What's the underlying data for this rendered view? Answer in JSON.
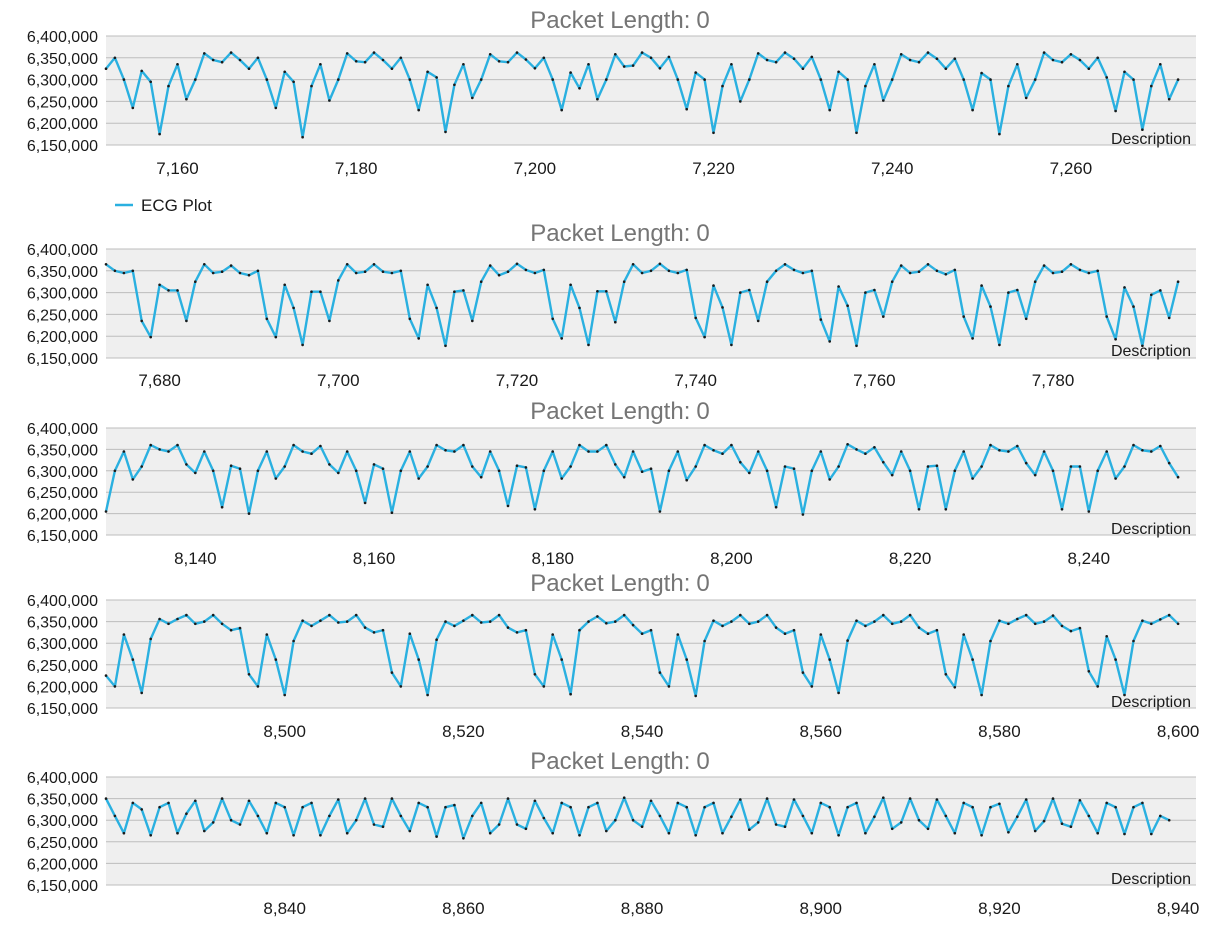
{
  "chart_data": [
    {
      "type": "line",
      "title_label": "Packet Length:",
      "title_value": "0",
      "description": "Description",
      "legend": {
        "label": "ECG Plot",
        "placement": "bottom-left"
      },
      "color": "#2ab0e0",
      "xlim": [
        7152,
        7274
      ],
      "ylim": [
        6150000,
        6400000
      ],
      "x_ticks": [
        7160,
        7180,
        7200,
        7220,
        7240,
        7260
      ],
      "y_ticks": [
        6150000,
        6200000,
        6250000,
        6300000,
        6350000,
        6400000
      ],
      "x_start": 7152,
      "x_step": 1,
      "y": [
        6325000,
        6350000,
        6300000,
        6235000,
        6320000,
        6295000,
        6175000,
        6285000,
        6335000,
        6255000,
        6300000,
        6360000,
        6345000,
        6340000,
        6362000,
        6345000,
        6325000,
        6350000,
        6300000,
        6235000,
        6318000,
        6295000,
        6168000,
        6285000,
        6335000,
        6252000,
        6300000,
        6360000,
        6342000,
        6340000,
        6362000,
        6345000,
        6325000,
        6350000,
        6300000,
        6230000,
        6318000,
        6305000,
        6180000,
        6288000,
        6335000,
        6258000,
        6300000,
        6358000,
        6342000,
        6340000,
        6362000,
        6346000,
        6326000,
        6350000,
        6300000,
        6230000,
        6316000,
        6280000,
        6335000,
        6255000,
        6300000,
        6358000,
        6330000,
        6332000,
        6362000,
        6350000,
        6326000,
        6352000,
        6300000,
        6232000,
        6316000,
        6300000,
        6178000,
        6285000,
        6335000,
        6250000,
        6300000,
        6360000,
        6345000,
        6340000,
        6362000,
        6348000,
        6325000,
        6352000,
        6300000,
        6230000,
        6318000,
        6300000,
        6178000,
        6285000,
        6335000,
        6252000,
        6300000,
        6358000,
        6345000,
        6340000,
        6362000,
        6348000,
        6325000,
        6348000,
        6300000,
        6230000,
        6315000,
        6300000,
        6175000,
        6285000,
        6335000,
        6258000,
        6300000,
        6362000,
        6345000,
        6340000,
        6358000,
        6345000,
        6325000,
        6350000,
        6305000,
        6228000,
        6318000,
        6300000,
        6185000,
        6285000,
        6335000,
        6255000,
        6300000
      ]
    },
    {
      "type": "line",
      "title_label": "Packet Length:",
      "title_value": "0",
      "description": "Description",
      "color": "#2ab0e0",
      "xlim": [
        7674,
        7796
      ],
      "ylim": [
        6150000,
        6400000
      ],
      "x_ticks": [
        7680,
        7700,
        7720,
        7740,
        7760,
        7780
      ],
      "y_ticks": [
        6150000,
        6200000,
        6250000,
        6300000,
        6350000,
        6400000
      ],
      "x_start": 7674,
      "x_step": 1,
      "y": [
        6365000,
        6350000,
        6345000,
        6350000,
        6235000,
        6198000,
        6318000,
        6305000,
        6305000,
        6235000,
        6325000,
        6365000,
        6345000,
        6348000,
        6362000,
        6345000,
        6340000,
        6350000,
        6240000,
        6198000,
        6318000,
        6265000,
        6180000,
        6302000,
        6302000,
        6235000,
        6328000,
        6365000,
        6345000,
        6348000,
        6365000,
        6348000,
        6345000,
        6350000,
        6240000,
        6195000,
        6318000,
        6265000,
        6178000,
        6302000,
        6305000,
        6235000,
        6325000,
        6362000,
        6340000,
        6348000,
        6366000,
        6352000,
        6345000,
        6352000,
        6240000,
        6195000,
        6318000,
        6265000,
        6180000,
        6303000,
        6303000,
        6232000,
        6325000,
        6365000,
        6345000,
        6350000,
        6366000,
        6350000,
        6345000,
        6352000,
        6242000,
        6198000,
        6316000,
        6266000,
        6180000,
        6300000,
        6306000,
        6235000,
        6325000,
        6350000,
        6365000,
        6352000,
        6345000,
        6350000,
        6238000,
        6188000,
        6314000,
        6270000,
        6178000,
        6300000,
        6306000,
        6245000,
        6325000,
        6362000,
        6345000,
        6348000,
        6365000,
        6350000,
        6342000,
        6352000,
        6245000,
        6195000,
        6316000,
        6268000,
        6180000,
        6300000,
        6306000,
        6240000,
        6325000,
        6362000,
        6345000,
        6348000,
        6365000,
        6352000,
        6345000,
        6350000,
        6245000,
        6193000,
        6312000,
        6268000,
        6178000,
        6295000,
        6305000,
        6242000,
        6325000
      ]
    },
    {
      "type": "line",
      "title_label": "Packet Length:",
      "title_value": "0",
      "description": "Description",
      "color": "#2ab0e0",
      "xlim": [
        8130,
        8252
      ],
      "ylim": [
        6150000,
        6400000
      ],
      "x_ticks": [
        8140,
        8160,
        8180,
        8200,
        8220,
        8240
      ],
      "y_ticks": [
        6150000,
        6200000,
        6250000,
        6300000,
        6350000,
        6400000
      ],
      "x_start": 8130,
      "x_step": 1,
      "y": [
        6205000,
        6300000,
        6345000,
        6280000,
        6310000,
        6360000,
        6350000,
        6345000,
        6360000,
        6315000,
        6295000,
        6345000,
        6300000,
        6215000,
        6312000,
        6305000,
        6200000,
        6300000,
        6345000,
        6282000,
        6310000,
        6360000,
        6345000,
        6340000,
        6358000,
        6315000,
        6295000,
        6345000,
        6300000,
        6225000,
        6315000,
        6305000,
        6202000,
        6300000,
        6345000,
        6282000,
        6310000,
        6360000,
        6348000,
        6345000,
        6360000,
        6310000,
        6285000,
        6345000,
        6300000,
        6218000,
        6312000,
        6308000,
        6210000,
        6300000,
        6345000,
        6282000,
        6310000,
        6360000,
        6345000,
        6345000,
        6360000,
        6315000,
        6285000,
        6345000,
        6298000,
        6305000,
        6205000,
        6300000,
        6345000,
        6278000,
        6310000,
        6360000,
        6348000,
        6340000,
        6360000,
        6320000,
        6295000,
        6345000,
        6300000,
        6215000,
        6310000,
        6305000,
        6198000,
        6300000,
        6345000,
        6280000,
        6310000,
        6362000,
        6350000,
        6340000,
        6355000,
        6320000,
        6290000,
        6345000,
        6300000,
        6210000,
        6310000,
        6312000,
        6210000,
        6300000,
        6345000,
        6282000,
        6310000,
        6360000,
        6348000,
        6345000,
        6358000,
        6318000,
        6290000,
        6345000,
        6300000,
        6210000,
        6310000,
        6310000,
        6205000,
        6300000,
        6345000,
        6282000,
        6310000,
        6360000,
        6348000,
        6345000,
        6358000,
        6318000,
        6285000
      ]
    },
    {
      "type": "line",
      "title_label": "Packet Length:",
      "title_value": "0",
      "description": "Description",
      "color": "#2ab0e0",
      "xlim": [
        8480,
        8602
      ],
      "ylim": [
        6150000,
        6400000
      ],
      "x_ticks": [
        8500,
        8520,
        8540,
        8560,
        8580,
        8600
      ],
      "y_ticks": [
        6150000,
        6200000,
        6250000,
        6300000,
        6350000,
        6400000
      ],
      "x_start": 8480,
      "x_step": 1,
      "y": [
        6225000,
        6200000,
        6320000,
        6262000,
        6185000,
        6310000,
        6356000,
        6345000,
        6356000,
        6365000,
        6345000,
        6350000,
        6365000,
        6345000,
        6330000,
        6335000,
        6228000,
        6200000,
        6320000,
        6262000,
        6180000,
        6305000,
        6352000,
        6340000,
        6352000,
        6365000,
        6348000,
        6350000,
        6365000,
        6336000,
        6325000,
        6330000,
        6232000,
        6200000,
        6322000,
        6262000,
        6180000,
        6308000,
        6350000,
        6340000,
        6352000,
        6365000,
        6348000,
        6350000,
        6365000,
        6336000,
        6325000,
        6330000,
        6228000,
        6200000,
        6320000,
        6262000,
        6182000,
        6330000,
        6350000,
        6362000,
        6346000,
        6350000,
        6365000,
        6342000,
        6322000,
        6330000,
        6232000,
        6200000,
        6320000,
        6262000,
        6178000,
        6305000,
        6352000,
        6340000,
        6350000,
        6365000,
        6345000,
        6350000,
        6365000,
        6336000,
        6322000,
        6330000,
        6232000,
        6200000,
        6320000,
        6262000,
        6185000,
        6306000,
        6352000,
        6340000,
        6350000,
        6365000,
        6345000,
        6350000,
        6365000,
        6336000,
        6322000,
        6330000,
        6228000,
        6198000,
        6320000,
        6262000,
        6180000,
        6305000,
        6352000,
        6345000,
        6356000,
        6365000,
        6345000,
        6350000,
        6364000,
        6340000,
        6328000,
        6335000,
        6235000,
        6200000,
        6316000,
        6262000,
        6180000,
        6305000,
        6352000,
        6345000,
        6355000,
        6365000,
        6345000
      ]
    },
    {
      "type": "line",
      "title_label": "Packet Length:",
      "title_value": "0",
      "description": "Description",
      "color": "#2ab0e0",
      "xlim": [
        8820,
        8942
      ],
      "ylim": [
        6150000,
        6400000
      ],
      "x_ticks": [
        8840,
        8860,
        8880,
        8900,
        8920,
        8940
      ],
      "y_ticks": [
        6150000,
        6200000,
        6250000,
        6300000,
        6350000,
        6400000
      ],
      "x_start": 8820,
      "x_step": 1,
      "y": [
        6350000,
        6310000,
        6270000,
        6340000,
        6325000,
        6265000,
        6330000,
        6340000,
        6270000,
        6315000,
        6345000,
        6275000,
        6295000,
        6350000,
        6300000,
        6290000,
        6345000,
        6310000,
        6270000,
        6340000,
        6330000,
        6265000,
        6330000,
        6340000,
        6265000,
        6310000,
        6348000,
        6270000,
        6300000,
        6350000,
        6290000,
        6285000,
        6350000,
        6310000,
        6275000,
        6340000,
        6330000,
        6262000,
        6330000,
        6335000,
        6258000,
        6310000,
        6340000,
        6270000,
        6290000,
        6350000,
        6290000,
        6280000,
        6345000,
        6305000,
        6270000,
        6340000,
        6330000,
        6265000,
        6330000,
        6340000,
        6275000,
        6300000,
        6352000,
        6300000,
        6285000,
        6345000,
        6310000,
        6270000,
        6340000,
        6330000,
        6265000,
        6330000,
        6340000,
        6270000,
        6308000,
        6348000,
        6278000,
        6295000,
        6350000,
        6290000,
        6285000,
        6348000,
        6310000,
        6270000,
        6340000,
        6330000,
        6265000,
        6330000,
        6340000,
        6270000,
        6308000,
        6352000,
        6280000,
        6295000,
        6350000,
        6300000,
        6280000,
        6348000,
        6310000,
        6270000,
        6340000,
        6330000,
        6265000,
        6330000,
        6338000,
        6272000,
        6308000,
        6348000,
        6275000,
        6298000,
        6350000,
        6292000,
        6285000,
        6346000,
        6310000,
        6270000,
        6340000,
        6330000,
        6268000,
        6330000,
        6340000,
        6268000,
        6310000,
        6300000
      ]
    }
  ]
}
